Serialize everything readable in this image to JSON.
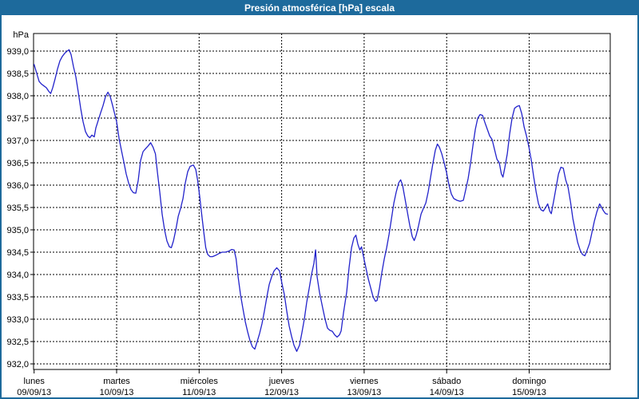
{
  "title": "Presión atmosférica [hPa] escala",
  "y_axis_unit": "hPa",
  "colors": {
    "accent": "#1d6a9c",
    "background": "#ffffff",
    "plot_border": "#000000",
    "grid": "#000000",
    "line": "#2323cb",
    "title_text": "#ffffff"
  },
  "chart_data": {
    "type": "line",
    "title": "Presión atmosférica [hPa] escala",
    "ylabel": "hPa",
    "xlabel": "",
    "ylim": [
      932.0,
      939.0
    ],
    "y_tick_step": 0.5,
    "y_tick_labels": [
      "939,0",
      "938,5",
      "938,0",
      "937,5",
      "937,0",
      "936,5",
      "936,0",
      "935,5",
      "935,0",
      "934,5",
      "934,0",
      "933,5",
      "933,0",
      "932,5",
      "932,0"
    ],
    "x_ticks": [
      {
        "day": "lunes",
        "date": "09/09/13"
      },
      {
        "day": "martes",
        "date": "10/09/13"
      },
      {
        "day": "miércoles",
        "date": "11/09/13"
      },
      {
        "day": "jueves",
        "date": "12/09/13"
      },
      {
        "day": "viernes",
        "date": "13/09/13"
      },
      {
        "day": "sábado",
        "date": "14/09/13"
      },
      {
        "day": "domingo",
        "date": "15/09/13"
      }
    ],
    "grid": "dashed",
    "legend_position": "none",
    "series": [
      {
        "name": "Presión atmosférica [hPa]",
        "color": "#2323cb",
        "x_unit": "days from 09/09/13 00:00",
        "y_unit": "hPa",
        "points": [
          [
            0.0,
            938.7
          ],
          [
            0.032,
            938.5
          ],
          [
            0.061,
            938.32
          ],
          [
            0.09,
            938.26
          ],
          [
            0.119,
            938.22
          ],
          [
            0.148,
            938.18
          ],
          [
            0.177,
            938.1
          ],
          [
            0.201,
            938.05
          ],
          [
            0.226,
            938.18
          ],
          [
            0.255,
            938.38
          ],
          [
            0.284,
            938.6
          ],
          [
            0.313,
            938.78
          ],
          [
            0.342,
            938.88
          ],
          [
            0.371,
            938.95
          ],
          [
            0.4,
            939.0
          ],
          [
            0.424,
            939.03
          ],
          [
            0.448,
            938.92
          ],
          [
            0.477,
            938.65
          ],
          [
            0.506,
            938.42
          ],
          [
            0.535,
            938.08
          ],
          [
            0.564,
            937.72
          ],
          [
            0.593,
            937.42
          ],
          [
            0.622,
            937.2
          ],
          [
            0.651,
            937.1
          ],
          [
            0.676,
            937.06
          ],
          [
            0.7,
            937.12
          ],
          [
            0.729,
            937.08
          ],
          [
            0.748,
            937.28
          ],
          [
            0.777,
            937.45
          ],
          [
            0.806,
            937.62
          ],
          [
            0.835,
            937.78
          ],
          [
            0.865,
            937.98
          ],
          [
            0.894,
            938.08
          ],
          [
            0.923,
            937.98
          ],
          [
            0.952,
            937.78
          ],
          [
            0.976,
            937.6
          ],
          [
            1.0,
            937.42
          ],
          [
            1.029,
            937.05
          ],
          [
            1.058,
            936.78
          ],
          [
            1.087,
            936.52
          ],
          [
            1.116,
            936.25
          ],
          [
            1.145,
            936.05
          ],
          [
            1.174,
            935.9
          ],
          [
            1.203,
            935.83
          ],
          [
            1.232,
            935.82
          ],
          [
            1.261,
            936.1
          ],
          [
            1.29,
            936.55
          ],
          [
            1.32,
            936.75
          ],
          [
            1.353,
            936.82
          ],
          [
            1.383,
            936.88
          ],
          [
            1.412,
            936.95
          ],
          [
            1.441,
            936.85
          ],
          [
            1.47,
            936.7
          ],
          [
            1.494,
            936.3
          ],
          [
            1.523,
            935.85
          ],
          [
            1.552,
            935.35
          ],
          [
            1.581,
            935.0
          ],
          [
            1.61,
            934.75
          ],
          [
            1.639,
            934.62
          ],
          [
            1.663,
            934.6
          ],
          [
            1.688,
            934.75
          ],
          [
            1.717,
            935.0
          ],
          [
            1.746,
            935.3
          ],
          [
            1.775,
            935.48
          ],
          [
            1.804,
            935.7
          ],
          [
            1.833,
            936.05
          ],
          [
            1.862,
            936.3
          ],
          [
            1.891,
            936.42
          ],
          [
            1.93,
            936.45
          ],
          [
            1.959,
            936.35
          ],
          [
            1.983,
            936.1
          ],
          [
            2.007,
            935.75
          ],
          [
            2.031,
            935.35
          ],
          [
            2.056,
            934.95
          ],
          [
            2.08,
            934.6
          ],
          [
            2.104,
            934.45
          ],
          [
            2.133,
            934.4
          ],
          [
            2.162,
            934.4
          ],
          [
            2.201,
            934.43
          ],
          [
            2.24,
            934.47
          ],
          [
            2.278,
            934.5
          ],
          [
            2.317,
            934.5
          ],
          [
            2.356,
            934.52
          ],
          [
            2.395,
            934.56
          ],
          [
            2.424,
            934.55
          ],
          [
            2.448,
            934.35
          ],
          [
            2.472,
            933.95
          ],
          [
            2.501,
            933.55
          ],
          [
            2.53,
            933.25
          ],
          [
            2.559,
            932.95
          ],
          [
            2.588,
            932.72
          ],
          [
            2.617,
            932.52
          ],
          [
            2.646,
            932.38
          ],
          [
            2.675,
            932.33
          ],
          [
            2.704,
            932.5
          ],
          [
            2.733,
            932.68
          ],
          [
            2.762,
            932.9
          ],
          [
            2.791,
            933.18
          ],
          [
            2.821,
            933.5
          ],
          [
            2.85,
            933.78
          ],
          [
            2.879,
            933.95
          ],
          [
            2.908,
            934.08
          ],
          [
            2.941,
            934.15
          ],
          [
            2.975,
            934.08
          ],
          [
            3.004,
            933.8
          ],
          [
            3.033,
            933.55
          ],
          [
            3.062,
            933.18
          ],
          [
            3.091,
            932.85
          ],
          [
            3.12,
            932.62
          ],
          [
            3.149,
            932.42
          ],
          [
            3.183,
            932.28
          ],
          [
            3.217,
            932.42
          ],
          [
            3.246,
            932.7
          ],
          [
            3.275,
            933.0
          ],
          [
            3.304,
            933.38
          ],
          [
            3.333,
            933.68
          ],
          [
            3.362,
            934.0
          ],
          [
            3.391,
            934.25
          ],
          [
            3.411,
            934.55
          ],
          [
            3.43,
            933.95
          ],
          [
            3.459,
            933.6
          ],
          [
            3.498,
            933.25
          ],
          [
            3.527,
            933.0
          ],
          [
            3.556,
            932.8
          ],
          [
            3.585,
            932.75
          ],
          [
            3.614,
            932.73
          ],
          [
            3.643,
            932.65
          ],
          [
            3.672,
            932.6
          ],
          [
            3.701,
            932.65
          ],
          [
            3.721,
            932.74
          ],
          [
            3.75,
            933.15
          ],
          [
            3.788,
            933.6
          ],
          [
            3.817,
            934.15
          ],
          [
            3.847,
            934.6
          ],
          [
            3.876,
            934.82
          ],
          [
            3.9,
            934.88
          ],
          [
            3.924,
            934.68
          ],
          [
            3.948,
            934.55
          ],
          [
            3.968,
            934.62
          ],
          [
            3.992,
            934.4
          ],
          [
            4.021,
            934.15
          ],
          [
            4.05,
            933.9
          ],
          [
            4.079,
            933.7
          ],
          [
            4.108,
            933.5
          ],
          [
            4.137,
            933.4
          ],
          [
            4.157,
            933.42
          ],
          [
            4.186,
            933.7
          ],
          [
            4.215,
            934.05
          ],
          [
            4.244,
            934.35
          ],
          [
            4.273,
            934.6
          ],
          [
            4.302,
            934.9
          ],
          [
            4.331,
            935.25
          ],
          [
            4.36,
            935.6
          ],
          [
            4.389,
            935.85
          ],
          [
            4.418,
            936.05
          ],
          [
            4.442,
            936.12
          ],
          [
            4.466,
            936.0
          ],
          [
            4.495,
            935.7
          ],
          [
            4.524,
            935.4
          ],
          [
            4.553,
            935.1
          ],
          [
            4.583,
            934.85
          ],
          [
            4.607,
            934.76
          ],
          [
            4.631,
            934.88
          ],
          [
            4.66,
            935.1
          ],
          [
            4.689,
            935.35
          ],
          [
            4.718,
            935.48
          ],
          [
            4.747,
            935.6
          ],
          [
            4.776,
            935.85
          ],
          [
            4.805,
            936.18
          ],
          [
            4.834,
            936.5
          ],
          [
            4.863,
            936.78
          ],
          [
            4.888,
            936.92
          ],
          [
            4.912,
            936.85
          ],
          [
            4.941,
            936.7
          ],
          [
            4.97,
            936.5
          ],
          [
            4.999,
            936.28
          ],
          [
            5.028,
            936.0
          ],
          [
            5.057,
            935.8
          ],
          [
            5.086,
            935.7
          ],
          [
            5.125,
            935.66
          ],
          [
            5.164,
            935.64
          ],
          [
            5.202,
            935.66
          ],
          [
            5.231,
            935.9
          ],
          [
            5.26,
            936.15
          ],
          [
            5.29,
            936.5
          ],
          [
            5.319,
            936.9
          ],
          [
            5.348,
            937.25
          ],
          [
            5.377,
            937.5
          ],
          [
            5.406,
            937.58
          ],
          [
            5.435,
            937.56
          ],
          [
            5.464,
            937.4
          ],
          [
            5.493,
            937.25
          ],
          [
            5.522,
            937.1
          ],
          [
            5.551,
            937.02
          ],
          [
            5.58,
            936.8
          ],
          [
            5.609,
            936.58
          ],
          [
            5.638,
            936.5
          ],
          [
            5.663,
            936.25
          ],
          [
            5.682,
            936.18
          ],
          [
            5.706,
            936.4
          ],
          [
            5.735,
            936.7
          ],
          [
            5.764,
            937.15
          ],
          [
            5.793,
            937.5
          ],
          [
            5.823,
            937.72
          ],
          [
            5.852,
            937.76
          ],
          [
            5.881,
            937.78
          ],
          [
            5.91,
            937.6
          ],
          [
            5.939,
            937.3
          ],
          [
            5.968,
            937.1
          ],
          [
            5.997,
            936.85
          ],
          [
            6.026,
            936.55
          ],
          [
            6.055,
            936.18
          ],
          [
            6.084,
            935.85
          ],
          [
            6.113,
            935.58
          ],
          [
            6.142,
            935.45
          ],
          [
            6.171,
            935.42
          ],
          [
            6.2,
            935.5
          ],
          [
            6.225,
            935.58
          ],
          [
            6.249,
            935.42
          ],
          [
            6.268,
            935.36
          ],
          [
            6.297,
            935.65
          ],
          [
            6.326,
            935.95
          ],
          [
            6.355,
            936.25
          ],
          [
            6.384,
            936.4
          ],
          [
            6.413,
            936.38
          ],
          [
            6.442,
            936.12
          ],
          [
            6.471,
            935.95
          ],
          [
            6.501,
            935.62
          ],
          [
            6.53,
            935.25
          ],
          [
            6.559,
            934.98
          ],
          [
            6.588,
            934.72
          ],
          [
            6.617,
            934.55
          ],
          [
            6.646,
            934.45
          ],
          [
            6.675,
            934.42
          ],
          [
            6.704,
            934.55
          ],
          [
            6.733,
            934.7
          ],
          [
            6.762,
            934.95
          ],
          [
            6.791,
            935.2
          ],
          [
            6.82,
            935.4
          ],
          [
            6.854,
            935.58
          ],
          [
            6.878,
            935.5
          ],
          [
            6.902,
            935.42
          ],
          [
            6.926,
            935.36
          ],
          [
            6.95,
            935.35
          ]
        ]
      }
    ]
  }
}
